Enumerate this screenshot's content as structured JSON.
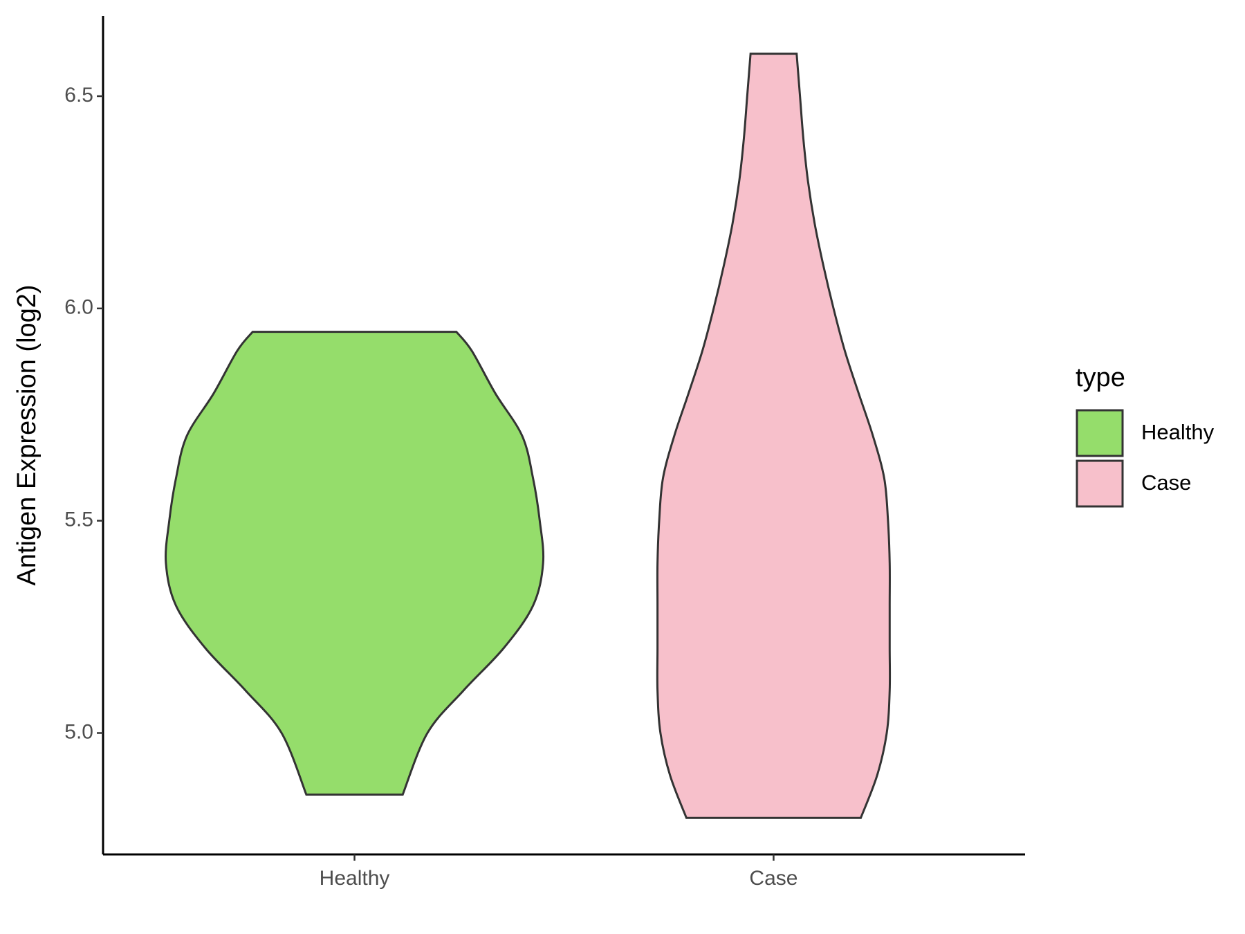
{
  "chart_data": {
    "type": "violin",
    "ylabel": "Antigen Expression (log2)",
    "categories": [
      "Healthy",
      "Case"
    ],
    "legend_title": "type",
    "legend": "right",
    "ylim": [
      4.714,
      6.689
    ],
    "yticks": [
      {
        "value": 5,
        "label": "5.0"
      },
      5.5,
      {
        "value": 6,
        "label": "6.0"
      },
      6.5
    ],
    "series": [
      {
        "name": "Healthy",
        "color": "#95dd6b",
        "y": [
          4.855,
          5.0,
          5.1,
          5.2,
          5.3,
          5.4,
          5.5,
          5.6,
          5.7,
          5.8,
          5.9,
          5.945
        ],
        "width": [
          0.115,
          0.174,
          0.26,
          0.356,
          0.426,
          0.45,
          0.442,
          0.426,
          0.4,
          0.336,
          0.28,
          0.243
        ]
      },
      {
        "name": "Case",
        "color": "#f7c0cb",
        "y": [
          4.8,
          4.9,
          5.0,
          5.1,
          5.2,
          5.3,
          5.4,
          5.5,
          5.6,
          5.7,
          5.8,
          5.9,
          6.0,
          6.1,
          6.2,
          6.3,
          6.4,
          6.5,
          6.6
        ],
        "width": [
          0.208,
          0.247,
          0.27,
          0.277,
          0.277,
          0.277,
          0.277,
          0.273,
          0.264,
          0.237,
          0.203,
          0.17,
          0.143,
          0.119,
          0.098,
          0.082,
          0.071,
          0.063,
          0.055
        ]
      }
    ]
  }
}
